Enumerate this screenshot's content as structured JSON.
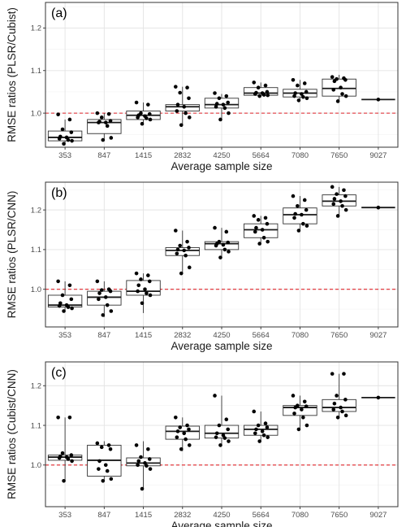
{
  "chart_data": [
    {
      "type": "box",
      "panel_label": "(a)",
      "xlabel": "Average sample size",
      "ylabel": "RMSE ratios (PLSR/Cubist)",
      "categories": [
        "353",
        "847",
        "1415",
        "2832",
        "4250",
        "5664",
        "7080",
        "7650",
        "9027"
      ],
      "yticks": [
        "1.0",
        "1.1",
        "1.2"
      ],
      "ylim": [
        0.92,
        1.26
      ],
      "reference_line": 1.0,
      "boxes": [
        {
          "q1": 0.935,
          "median": 0.943,
          "q3": 0.958,
          "lo": 0.925,
          "hi": 0.985
        },
        {
          "q1": 0.952,
          "median": 0.978,
          "q3": 0.985,
          "lo": 0.935,
          "hi": 1.0
        },
        {
          "q1": 0.985,
          "median": 0.995,
          "q3": 1.005,
          "lo": 0.972,
          "hi": 1.025
        },
        {
          "q1": 1.005,
          "median": 1.015,
          "q3": 1.02,
          "lo": 0.972,
          "hi": 1.062
        },
        {
          "q1": 1.012,
          "median": 1.02,
          "q3": 1.035,
          "lo": 0.985,
          "hi": 1.045
        },
        {
          "q1": 1.042,
          "median": 1.047,
          "q3": 1.06,
          "lo": 1.04,
          "hi": 1.072
        },
        {
          "q1": 1.038,
          "median": 1.047,
          "q3": 1.056,
          "lo": 1.028,
          "hi": 1.078
        },
        {
          "q1": 1.04,
          "median": 1.058,
          "q3": 1.08,
          "lo": 1.028,
          "hi": 1.09
        },
        {
          "q1": 1.032,
          "median": 1.032,
          "q3": 1.032,
          "lo": 1.032,
          "hi": 1.032
        }
      ],
      "points": [
        [
          0.997,
          0.985,
          0.962,
          0.955,
          0.945,
          0.943,
          0.94,
          0.937,
          0.935,
          0.928
        ],
        [
          1.0,
          0.998,
          0.99,
          0.982,
          0.98,
          0.978,
          0.978,
          0.97,
          0.942,
          0.937
        ],
        [
          1.025,
          1.02,
          1.0,
          0.998,
          0.995,
          0.993,
          0.99,
          0.988,
          0.985,
          0.975
        ],
        [
          1.062,
          1.06,
          1.048,
          1.035,
          1.02,
          1.015,
          1.005,
          1.0,
          0.99,
          0.972
        ],
        [
          1.047,
          1.04,
          1.035,
          1.025,
          1.022,
          1.02,
          1.015,
          1.012,
          1.0,
          0.985
        ],
        [
          1.072,
          1.065,
          1.06,
          1.05,
          1.048,
          1.047,
          1.045,
          1.043,
          1.042,
          1.04
        ],
        [
          1.078,
          1.07,
          1.065,
          1.05,
          1.047,
          1.045,
          1.04,
          1.038,
          1.035,
          1.03
        ],
        [
          1.085,
          1.082,
          1.08,
          1.078,
          1.075,
          1.06,
          1.055,
          1.045,
          1.04,
          1.028
        ],
        [
          1.032
        ]
      ]
    },
    {
      "type": "box",
      "panel_label": "(b)",
      "xlabel": "Average sample size",
      "ylabel": "RMSE ratios (PLSR/CNN)",
      "categories": [
        "353",
        "847",
        "1415",
        "2832",
        "4250",
        "5664",
        "7080",
        "7650",
        "9027"
      ],
      "yticks": [
        "1.0",
        "1.1",
        "1.2"
      ],
      "ylim": [
        0.905,
        1.27
      ],
      "reference_line": 1.0,
      "boxes": [
        {
          "q1": 0.955,
          "median": 0.96,
          "q3": 0.985,
          "lo": 0.945,
          "hi": 1.02
        },
        {
          "q1": 0.96,
          "median": 0.98,
          "q3": 0.995,
          "lo": 0.93,
          "hi": 1.02
        },
        {
          "q1": 0.985,
          "median": 0.995,
          "q3": 1.022,
          "lo": 0.94,
          "hi": 1.04
        },
        {
          "q1": 1.085,
          "median": 1.098,
          "q3": 1.105,
          "lo": 1.04,
          "hi": 1.148
        },
        {
          "q1": 1.1,
          "median": 1.115,
          "q3": 1.12,
          "lo": 1.08,
          "hi": 1.155
        },
        {
          "q1": 1.13,
          "median": 1.15,
          "q3": 1.165,
          "lo": 1.115,
          "hi": 1.185
        },
        {
          "q1": 1.165,
          "median": 1.188,
          "q3": 1.205,
          "lo": 1.148,
          "hi": 1.235
        },
        {
          "q1": 1.21,
          "median": 1.222,
          "q3": 1.238,
          "lo": 1.185,
          "hi": 1.258
        },
        {
          "q1": 1.206,
          "median": 1.206,
          "q3": 1.206,
          "lo": 1.206,
          "hi": 1.206
        }
      ],
      "points": [
        [
          1.02,
          1.01,
          0.985,
          0.975,
          0.965,
          0.96,
          0.958,
          0.955,
          0.952,
          0.945
        ],
        [
          1.02,
          1.0,
          0.998,
          0.995,
          0.99,
          0.98,
          0.975,
          0.96,
          0.945,
          0.935
        ],
        [
          1.04,
          1.035,
          1.025,
          1.02,
          1.01,
          1.0,
          0.995,
          0.99,
          0.985,
          0.965
        ],
        [
          1.148,
          1.12,
          1.11,
          1.105,
          1.1,
          1.098,
          1.09,
          1.085,
          1.055,
          1.04
        ],
        [
          1.155,
          1.145,
          1.12,
          1.118,
          1.115,
          1.112,
          1.11,
          1.1,
          1.095,
          1.08
        ],
        [
          1.185,
          1.18,
          1.175,
          1.165,
          1.155,
          1.15,
          1.145,
          1.13,
          1.12,
          1.115
        ],
        [
          1.235,
          1.225,
          1.21,
          1.2,
          1.19,
          1.188,
          1.18,
          1.165,
          1.16,
          1.148
        ],
        [
          1.258,
          1.25,
          1.24,
          1.235,
          1.228,
          1.222,
          1.215,
          1.21,
          1.2,
          1.185
        ],
        [
          1.206
        ]
      ]
    },
    {
      "type": "box",
      "panel_label": "(c)",
      "xlabel": "Average sample size",
      "ylabel": "RMSE ratios (Cubist/CNN)",
      "categories": [
        "353",
        "847",
        "1415",
        "2832",
        "4250",
        "5664",
        "7080",
        "7650",
        "9027"
      ],
      "yticks": [
        "1.0",
        "1.1",
        "1.2"
      ],
      "ylim": [
        0.895,
        1.26
      ],
      "reference_line": 1.0,
      "boxes": [
        {
          "q1": 1.012,
          "median": 1.02,
          "q3": 1.025,
          "lo": 0.96,
          "hi": 1.12
        },
        {
          "q1": 0.972,
          "median": 1.012,
          "q3": 1.05,
          "lo": 0.96,
          "hi": 1.06
        },
        {
          "q1": 0.998,
          "median": 1.005,
          "q3": 1.018,
          "lo": 0.94,
          "hi": 1.06
        },
        {
          "q1": 1.065,
          "median": 1.085,
          "q3": 1.098,
          "lo": 1.035,
          "hi": 1.12
        },
        {
          "q1": 1.068,
          "median": 1.08,
          "q3": 1.1,
          "lo": 1.05,
          "hi": 1.175
        },
        {
          "q1": 1.075,
          "median": 1.09,
          "q3": 1.1,
          "lo": 1.06,
          "hi": 1.135
        },
        {
          "q1": 1.125,
          "median": 1.145,
          "q3": 1.15,
          "lo": 1.09,
          "hi": 1.175
        },
        {
          "q1": 1.135,
          "median": 1.145,
          "q3": 1.165,
          "lo": 1.12,
          "hi": 1.23
        },
        {
          "q1": 1.17,
          "median": 1.17,
          "q3": 1.17,
          "lo": 1.17,
          "hi": 1.17
        }
      ],
      "points": [
        [
          1.12,
          1.12,
          1.03,
          1.025,
          1.022,
          1.02,
          1.018,
          1.015,
          1.01,
          0.96
        ],
        [
          1.055,
          1.05,
          1.045,
          1.04,
          1.01,
          1.0,
          0.99,
          0.985,
          0.965,
          0.96
        ],
        [
          1.05,
          1.04,
          1.02,
          1.015,
          1.01,
          1.005,
          1.0,
          0.998,
          0.99,
          0.94
        ],
        [
          1.12,
          1.1,
          1.095,
          1.09,
          1.085,
          1.08,
          1.07,
          1.065,
          1.05,
          1.04
        ],
        [
          1.175,
          1.115,
          1.1,
          1.09,
          1.08,
          1.075,
          1.07,
          1.068,
          1.06,
          1.05
        ],
        [
          1.135,
          1.105,
          1.1,
          1.095,
          1.09,
          1.085,
          1.08,
          1.075,
          1.07,
          1.06
        ],
        [
          1.175,
          1.16,
          1.15,
          1.148,
          1.145,
          1.14,
          1.13,
          1.12,
          1.1,
          1.09
        ],
        [
          1.23,
          1.23,
          1.175,
          1.165,
          1.155,
          1.145,
          1.14,
          1.135,
          1.125,
          1.12
        ],
        [
          1.17
        ]
      ]
    }
  ]
}
